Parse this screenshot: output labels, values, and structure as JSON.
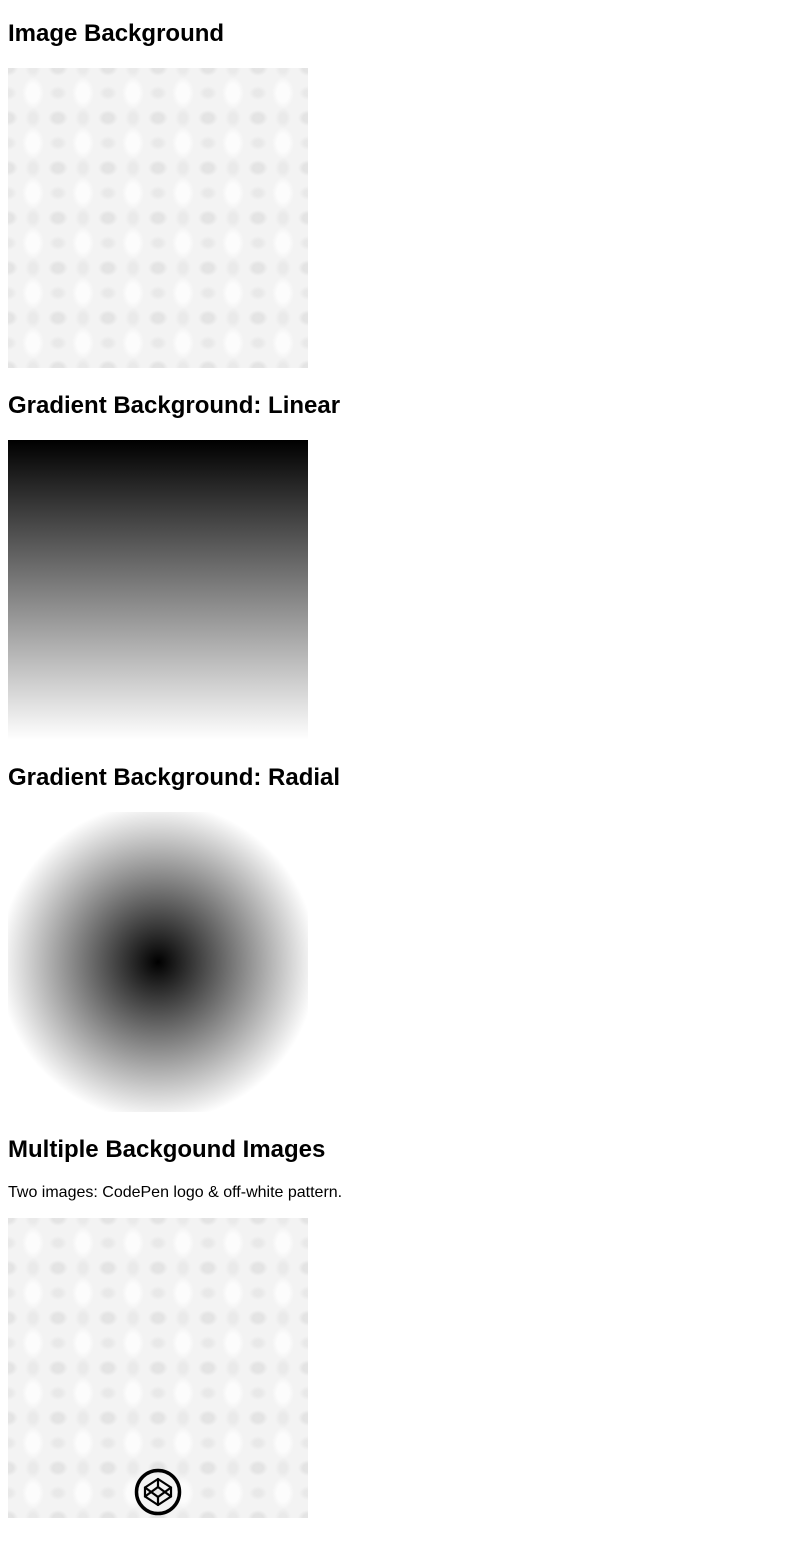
{
  "sections": [
    {
      "title": "Image Background"
    },
    {
      "title": "Gradient Background: Linear"
    },
    {
      "title": "Gradient Background: Radial"
    },
    {
      "title": "Multiple Backgound Images",
      "caption": "Two images: CodePen logo & off-white pattern."
    }
  ],
  "colors": {
    "text": "#000000",
    "page_background": "#ffffff",
    "pattern_base": "#f3f3f3",
    "gradient_dark": "#000000",
    "gradient_light": "#ffffff"
  },
  "icons": {
    "logo": "codepen-logo-icon"
  }
}
